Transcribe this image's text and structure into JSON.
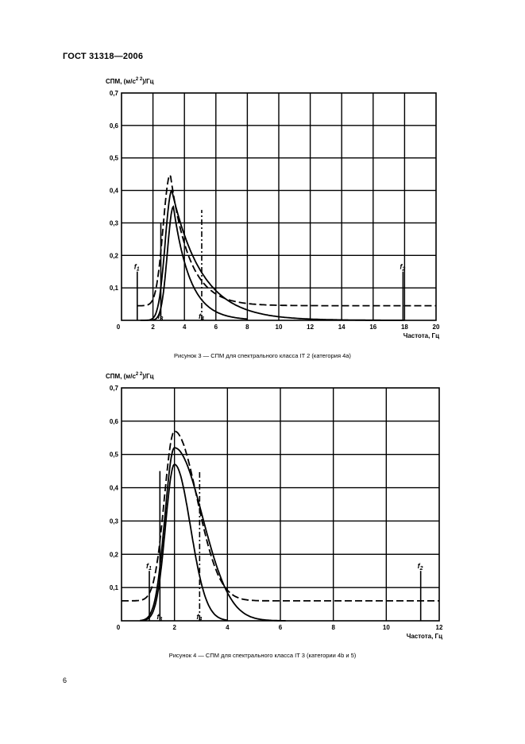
{
  "header": {
    "standard": "ГОСТ 31318—2006"
  },
  "page_number": "6",
  "chart_data": [
    {
      "type": "line",
      "caption": "Рисунок 3 — СПМ для спектрального класса IT 2 (категория 4а)",
      "ylabel_main": "СПМ, (м/с",
      "ylabel_sup": "2 2",
      "ylabel_tail": ")/Гц",
      "xlabel": "Частота, Гц",
      "xlim": [
        0,
        20
      ],
      "ylim": [
        0,
        0.7
      ],
      "x_ticks": [
        "0",
        "2",
        "4",
        "6",
        "8",
        "10",
        "12",
        "14",
        "16",
        "18",
        "20"
      ],
      "y_ticks": [
        "0,1",
        "0,2",
        "0,3",
        "0,4",
        "0,5",
        "0,6",
        "0,7"
      ],
      "x_grid": [
        2,
        4,
        6,
        8,
        10,
        12,
        14,
        16,
        18
      ],
      "y_grid": [
        0.1,
        0.2,
        0.3,
        0.4,
        0.5,
        0.6
      ],
      "markers": [
        {
          "name": "f1",
          "label": "f",
          "sub": "1",
          "x": 1.0,
          "top": 0.15,
          "style": "solid"
        },
        {
          "name": "f3",
          "label": "f",
          "sub": "3",
          "x": 2.5,
          "top": 0.3,
          "style": "solid"
        },
        {
          "name": "f4",
          "label": "f",
          "sub": "4",
          "x": 5.1,
          "top": 0.34,
          "style": "dashdot"
        },
        {
          "name": "f2",
          "label": "f",
          "sub": "2",
          "x": 17.9,
          "top": 0.15,
          "style": "solid"
        }
      ],
      "series": [
        {
          "name": "upper",
          "style": "dashed",
          "peak_x": 3.1,
          "peak": 0.45,
          "floor": 0.045,
          "sigma_left": 0.45,
          "decay": 1.2,
          "floor_x_start": 1.0,
          "floor_x_end": 20
        },
        {
          "name": "middle",
          "style": "solid",
          "peak_x": 3.2,
          "peak": 0.4,
          "floor": 0,
          "sigma_left": 0.42,
          "decay": 1.9,
          "x_start": 1.2,
          "x_end": 18
        },
        {
          "name": "lower",
          "style": "solid",
          "peak_x": 3.3,
          "peak": 0.35,
          "floor": 0,
          "sigma_left": 0.38,
          "decay": 1.05,
          "x_start": 2.0,
          "x_end": 8
        }
      ]
    },
    {
      "type": "line",
      "caption": "Рисунок 4 — СПМ для спектрального класса IT 3 (категории 4b и 5)",
      "ylabel_main": "СПМ, (м/с",
      "ylabel_sup": "2 2",
      "ylabel_tail": ")/Гц",
      "xlabel": "Частота, Гц",
      "xlim": [
        0,
        12
      ],
      "ylim": [
        0,
        0.7
      ],
      "x_ticks": [
        "0",
        "2",
        "4",
        "6",
        "8",
        "10",
        "12"
      ],
      "y_ticks": [
        "0,1",
        "0,2",
        "0,3",
        "0,4",
        "0,5",
        "0,6",
        "0,7"
      ],
      "x_grid": [
        2,
        4,
        6,
        8,
        10
      ],
      "y_grid": [
        0.1,
        0.2,
        0.3,
        0.4,
        0.5,
        0.6
      ],
      "markers": [
        {
          "name": "f1",
          "label": "f",
          "sub": "1",
          "x": 1.05,
          "top": 0.15,
          "style": "solid"
        },
        {
          "name": "f3",
          "label": "f",
          "sub": "3",
          "x": 1.45,
          "top": 0.45,
          "style": "solid"
        },
        {
          "name": "f4",
          "label": "f",
          "sub": "4",
          "x": 2.95,
          "top": 0.45,
          "style": "dashdot"
        },
        {
          "name": "f2",
          "label": "f",
          "sub": "2",
          "x": 11.3,
          "top": 0.15,
          "style": "solid"
        }
      ],
      "series": [
        {
          "name": "upper",
          "style": "dashed",
          "peak_x": 2.0,
          "peak": 0.57,
          "floor": 0.06,
          "sigma_left": 0.38,
          "sigma_right": 0.85,
          "floor_x_start": 0,
          "floor_x_end": 12
        },
        {
          "name": "middle",
          "style": "solid",
          "peak_x": 2.0,
          "peak": 0.52,
          "floor": 0,
          "sigma_left": 0.36,
          "sigma_right": 1.05,
          "x_start": 0.7,
          "x_end": 6.2
        },
        {
          "name": "lower",
          "style": "solid",
          "peak_x": 2.0,
          "peak": 0.47,
          "floor": 0,
          "sigma_left": 0.34,
          "sigma_right": 0.6,
          "x_start": 0.8,
          "x_end": 4.0
        }
      ]
    }
  ]
}
